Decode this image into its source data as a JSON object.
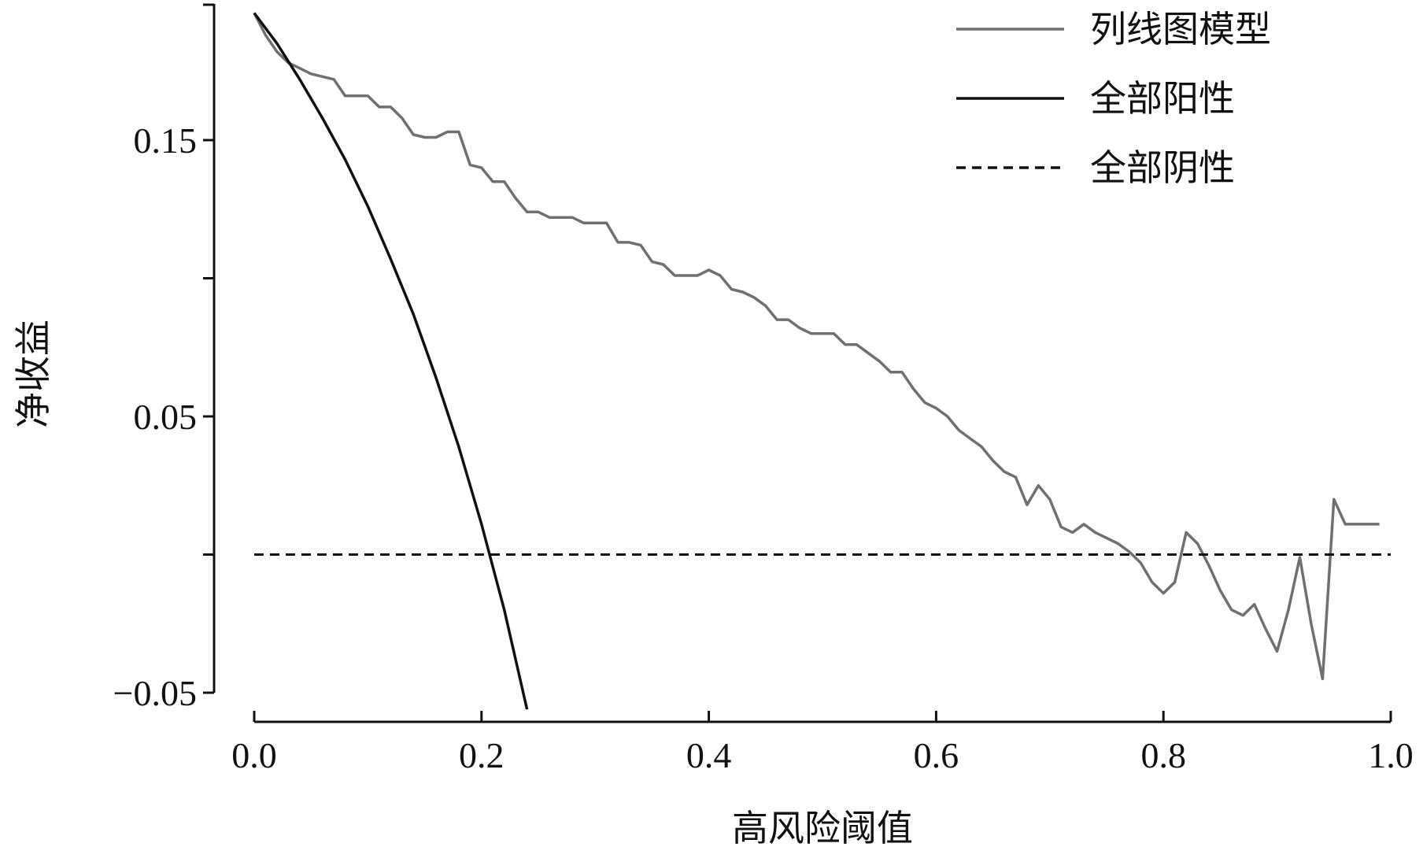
{
  "chart_data": {
    "type": "line",
    "title": "",
    "xlabel": "高风险阈值",
    "ylabel": "净收益",
    "xlim": [
      0.0,
      1.0
    ],
    "ylim": [
      -0.06,
      0.2
    ],
    "x_ticks": [
      0.0,
      0.2,
      0.4,
      0.6,
      0.8,
      1.0
    ],
    "x_tick_labels": [
      "0.0",
      "0.2",
      "0.4",
      "0.6",
      "0.8",
      "1.0"
    ],
    "y_ticks": [
      -0.05,
      0.0,
      0.05,
      0.1,
      0.15
    ],
    "y_tick_labels": [
      "−0.05",
      "",
      "0.05",
      "",
      "0.15"
    ],
    "grid": false,
    "legend_position": "top-right",
    "series": [
      {
        "name": "列线图模型",
        "color": "#707070",
        "style": "solid",
        "x": [
          0.0,
          0.01,
          0.02,
          0.03,
          0.04,
          0.05,
          0.06,
          0.07,
          0.08,
          0.09,
          0.1,
          0.11,
          0.12,
          0.13,
          0.14,
          0.15,
          0.16,
          0.17,
          0.18,
          0.19,
          0.2,
          0.21,
          0.22,
          0.23,
          0.24,
          0.25,
          0.26,
          0.27,
          0.28,
          0.29,
          0.3,
          0.31,
          0.32,
          0.33,
          0.34,
          0.35,
          0.36,
          0.37,
          0.38,
          0.39,
          0.4,
          0.41,
          0.42,
          0.43,
          0.44,
          0.45,
          0.46,
          0.47,
          0.48,
          0.49,
          0.5,
          0.51,
          0.52,
          0.53,
          0.54,
          0.55,
          0.56,
          0.57,
          0.58,
          0.59,
          0.6,
          0.61,
          0.62,
          0.63,
          0.64,
          0.65,
          0.66,
          0.67,
          0.68,
          0.69,
          0.7,
          0.71,
          0.72,
          0.73,
          0.74,
          0.75,
          0.76,
          0.77,
          0.78,
          0.79,
          0.8,
          0.81,
          0.82,
          0.83,
          0.84,
          0.85,
          0.86,
          0.87,
          0.88,
          0.89,
          0.9,
          0.91,
          0.92,
          0.93,
          0.94,
          0.95,
          0.96,
          0.97,
          0.98,
          0.99
        ],
        "y": [
          0.196,
          0.188,
          0.182,
          0.178,
          0.176,
          0.174,
          0.173,
          0.172,
          0.166,
          0.166,
          0.166,
          0.162,
          0.162,
          0.158,
          0.152,
          0.151,
          0.151,
          0.153,
          0.153,
          0.141,
          0.14,
          0.135,
          0.135,
          0.129,
          0.124,
          0.124,
          0.122,
          0.122,
          0.122,
          0.12,
          0.12,
          0.12,
          0.113,
          0.113,
          0.112,
          0.106,
          0.105,
          0.101,
          0.101,
          0.101,
          0.103,
          0.101,
          0.096,
          0.095,
          0.093,
          0.09,
          0.085,
          0.085,
          0.082,
          0.08,
          0.08,
          0.08,
          0.076,
          0.076,
          0.073,
          0.07,
          0.066,
          0.066,
          0.06,
          0.055,
          0.053,
          0.05,
          0.045,
          0.042,
          0.039,
          0.034,
          0.03,
          0.028,
          0.018,
          0.025,
          0.02,
          0.01,
          0.008,
          0.011,
          0.008,
          0.006,
          0.004,
          0.001,
          -0.003,
          -0.01,
          -0.014,
          -0.01,
          0.008,
          0.004,
          -0.004,
          -0.013,
          -0.02,
          -0.022,
          -0.018,
          -0.027,
          -0.035,
          -0.02,
          -0.001,
          -0.025,
          -0.045,
          0.02,
          0.011,
          0.011,
          0.011,
          0.011
        ]
      },
      {
        "name": "全部阳性",
        "color": "#111111",
        "style": "solid",
        "x": [
          0.0,
          0.02,
          0.04,
          0.06,
          0.08,
          0.1,
          0.12,
          0.14,
          0.16,
          0.18,
          0.2,
          0.22,
          0.24
        ],
        "y": [
          0.196,
          0.185,
          0.172,
          0.158,
          0.143,
          0.126,
          0.107,
          0.087,
          0.064,
          0.039,
          0.011,
          -0.02,
          -0.056
        ]
      },
      {
        "name": "全部阴性",
        "color": "#111111",
        "style": "dashed",
        "x": [
          0.0,
          1.0
        ],
        "y": [
          0.0,
          0.0
        ]
      }
    ]
  }
}
